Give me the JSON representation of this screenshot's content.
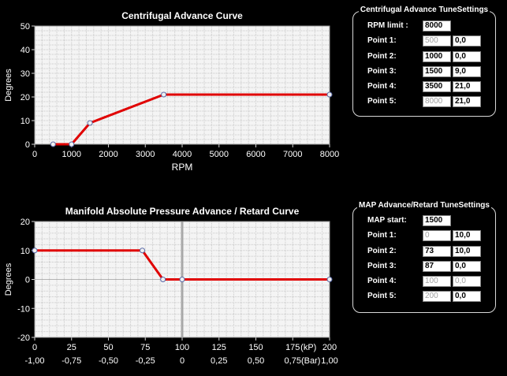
{
  "centrifugal_panel": {
    "title": "Centrifugal Advance TuneSettings",
    "limit_label": "RPM limit :",
    "limit_value": "8000",
    "points": [
      {
        "label": "Point 1:",
        "rpm": "500",
        "deg": "0,0",
        "rpm_enabled": false
      },
      {
        "label": "Point 2:",
        "rpm": "1000",
        "deg": "0,0",
        "rpm_enabled": true
      },
      {
        "label": "Point 3:",
        "rpm": "1500",
        "deg": "9,0",
        "rpm_enabled": true
      },
      {
        "label": "Point 4:",
        "rpm": "3500",
        "deg": "21,0",
        "rpm_enabled": true
      },
      {
        "label": "Point 5:",
        "rpm": "8000",
        "deg": "21,0",
        "rpm_enabled": false
      }
    ]
  },
  "map_panel": {
    "title": "MAP Advance/Retard TuneSettings",
    "start_label": "MAP start:",
    "start_value": "1500",
    "points": [
      {
        "label": "Point 1:",
        "kpa": "0",
        "deg": "10,0",
        "kpa_enabled": false,
        "deg_enabled": true
      },
      {
        "label": "Point 2:",
        "kpa": "73",
        "deg": "10,0",
        "kpa_enabled": true,
        "deg_enabled": true
      },
      {
        "label": "Point 3:",
        "kpa": "87",
        "deg": "0,0",
        "kpa_enabled": true,
        "deg_enabled": true
      },
      {
        "label": "Point 4:",
        "kpa": "100",
        "deg": "0,0",
        "kpa_enabled": false,
        "deg_enabled": false
      },
      {
        "label": "Point 5:",
        "kpa": "200",
        "deg": "0,0",
        "kpa_enabled": false,
        "deg_enabled": true
      }
    ]
  },
  "chart_data": [
    {
      "type": "line",
      "title": "Centrifugal Advance Curve",
      "xlabel": "RPM",
      "ylabel": "Degrees",
      "xlim": [
        0,
        8000
      ],
      "ylim": [
        0,
        50
      ],
      "xticks": [
        0,
        1000,
        2000,
        3000,
        4000,
        5000,
        6000,
        7000,
        8000
      ],
      "xtick_labels": [
        "0",
        "1000",
        "2000",
        "3000",
        "4000",
        "5000",
        "6000",
        "7000",
        "8000"
      ],
      "yticks": [
        0,
        10,
        20,
        30,
        40,
        50
      ],
      "ytick_labels": [
        "0",
        "10",
        "20",
        "30",
        "40",
        "50"
      ],
      "grid": true,
      "line_color": "#e00000",
      "series": [
        {
          "x": [
            500,
            1000,
            1500,
            3500,
            8000
          ],
          "y": [
            0,
            0,
            9,
            21,
            21
          ]
        }
      ]
    },
    {
      "type": "line",
      "title": "Manifold Absolute Pressure Advance / Retard Curve",
      "xlabel": "",
      "ylabel": "Degrees",
      "xlim": [
        0,
        200
      ],
      "ylim": [
        -20,
        20
      ],
      "xticks": [
        0,
        25,
        50,
        75,
        100,
        125,
        150,
        175,
        200
      ],
      "xtick_labels": [
        "0",
        "25",
        "50",
        "75",
        "100",
        "125",
        "150",
        "175",
        "200"
      ],
      "x_unit_label": "(kP)",
      "secondary_xtick_labels": [
        "-1,00",
        "-0,75",
        "-0,50",
        "-0,25",
        "0",
        "0,25",
        "0,50",
        "0,75",
        "1,00"
      ],
      "secondary_unit_label": "(Bar)",
      "yticks": [
        -20,
        -10,
        0,
        10,
        20
      ],
      "ytick_labels": [
        "-20",
        "-10",
        "0",
        "10",
        "20"
      ],
      "grid": true,
      "reference_lines": {
        "x": 100,
        "y": 0
      },
      "line_color": "#e00000",
      "series": [
        {
          "x": [
            0,
            73,
            87,
            100,
            200
          ],
          "y": [
            10,
            10,
            0,
            0,
            0
          ]
        }
      ]
    }
  ]
}
